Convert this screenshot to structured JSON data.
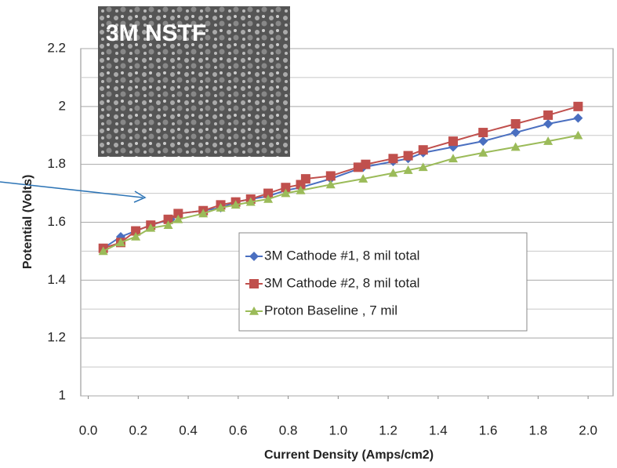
{
  "chart_data": {
    "type": "line",
    "inset_label": "3M NSTF",
    "x_label": "Current Density (Amps/cm2)",
    "y_label": "Potential (Volts)",
    "xlim": [
      -0.03,
      2.1
    ],
    "ylim": [
      1,
      2.2
    ],
    "xticks": [
      {
        "value": 0,
        "label": "0.0"
      },
      0.2,
      0.4,
      0.6,
      0.8,
      {
        "value": 1,
        "label": "1.0"
      },
      1.2,
      1.4,
      1.6,
      1.8,
      {
        "value": 2,
        "label": "2.0"
      }
    ],
    "yticks": [
      1,
      1.2,
      1.4,
      1.6,
      1.8,
      2,
      2.2
    ],
    "minor_grid": [
      1.1,
      1.3,
      1.5,
      1.7,
      1.9,
      2.1
    ],
    "grid": true,
    "legend": "right",
    "series": [
      {
        "name": "3M Cathode #1, 8 mil total",
        "color": "#4a6fc0",
        "marker": "diamond",
        "x": [
          0.06,
          0.13,
          0.19,
          0.25,
          0.33,
          0.36,
          0.46,
          0.53,
          0.59,
          0.65,
          0.72,
          0.79,
          0.85,
          0.97,
          1.1,
          1.22,
          1.28,
          1.34,
          1.46,
          1.58,
          1.71,
          1.84,
          1.96
        ],
        "values": [
          1.51,
          1.55,
          1.57,
          1.59,
          1.61,
          1.63,
          1.64,
          1.65,
          1.67,
          1.68,
          1.69,
          1.71,
          1.72,
          1.75,
          1.79,
          1.81,
          1.82,
          1.84,
          1.86,
          1.88,
          1.91,
          1.94,
          1.96
        ]
      },
      {
        "name": "3M Cathode #2, 8 mil total",
        "color": "#c0504d",
        "marker": "square",
        "x": [
          0.06,
          0.13,
          0.19,
          0.25,
          0.32,
          0.36,
          0.46,
          0.53,
          0.59,
          0.65,
          0.72,
          0.79,
          0.85,
          0.87,
          0.97,
          1.08,
          1.11,
          1.22,
          1.28,
          1.34,
          1.46,
          1.58,
          1.71,
          1.84,
          1.96
        ],
        "values": [
          1.51,
          1.53,
          1.57,
          1.59,
          1.61,
          1.63,
          1.64,
          1.66,
          1.67,
          1.68,
          1.7,
          1.72,
          1.73,
          1.75,
          1.76,
          1.79,
          1.8,
          1.82,
          1.83,
          1.85,
          1.88,
          1.91,
          1.94,
          1.97,
          2.0
        ]
      },
      {
        "name": "Proton Baseline , 7 mil",
        "color": "#9bbb59",
        "marker": "triangle",
        "x": [
          0.06,
          0.13,
          0.19,
          0.25,
          0.32,
          0.36,
          0.46,
          0.53,
          0.59,
          0.65,
          0.72,
          0.79,
          0.85,
          0.97,
          1.1,
          1.22,
          1.28,
          1.34,
          1.46,
          1.58,
          1.71,
          1.84,
          1.96
        ],
        "values": [
          1.5,
          1.53,
          1.55,
          1.58,
          1.59,
          1.61,
          1.63,
          1.65,
          1.66,
          1.67,
          1.68,
          1.7,
          1.71,
          1.73,
          1.75,
          1.77,
          1.78,
          1.79,
          1.82,
          1.84,
          1.86,
          1.88,
          1.9
        ]
      }
    ]
  }
}
